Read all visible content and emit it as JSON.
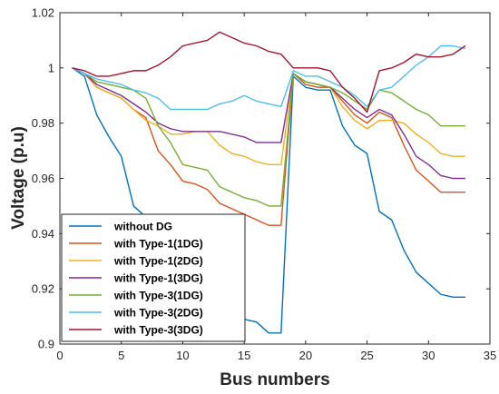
{
  "chart_data": {
    "type": "line",
    "xlabel": "Bus numbers",
    "ylabel": "Voltage (p.u)",
    "xlim": [
      0,
      35
    ],
    "ylim": [
      0.9,
      1.02
    ],
    "xticks": [
      "0",
      "5",
      "10",
      "15",
      "20",
      "25",
      "30",
      "35"
    ],
    "yticks": [
      "0.9",
      "0.92",
      "0.94",
      "0.96",
      "0.98",
      "1",
      "1.02"
    ],
    "grid": false,
    "legend_position": "bottom-left",
    "x": [
      1,
      2,
      3,
      4,
      5,
      6,
      7,
      8,
      9,
      10,
      11,
      12,
      13,
      14,
      15,
      16,
      17,
      18,
      19,
      20,
      21,
      22,
      23,
      24,
      25,
      26,
      27,
      28,
      29,
      30,
      31,
      32,
      33
    ],
    "series": [
      {
        "name": "without DG",
        "color": "#0072BD",
        "values": [
          1.0,
          0.997,
          0.983,
          0.975,
          0.968,
          0.95,
          0.946,
          0.932,
          0.926,
          0.921,
          0.919,
          0.917,
          0.911,
          0.91,
          0.909,
          0.908,
          0.904,
          0.904,
          0.997,
          0.993,
          0.992,
          0.992,
          0.979,
          0.972,
          0.969,
          0.948,
          0.945,
          0.934,
          0.926,
          0.922,
          0.918,
          0.917,
          0.917
        ]
      },
      {
        "name": "with Type-1(1DG)",
        "color": "#D95319",
        "values": [
          1.0,
          0.998,
          0.993,
          0.991,
          0.989,
          0.985,
          0.982,
          0.97,
          0.965,
          0.959,
          0.958,
          0.956,
          0.951,
          0.949,
          0.947,
          0.945,
          0.943,
          0.943,
          0.998,
          0.994,
          0.993,
          0.993,
          0.988,
          0.983,
          0.98,
          0.984,
          0.982,
          0.972,
          0.963,
          0.959,
          0.955,
          0.955,
          0.955
        ]
      },
      {
        "name": "with Type-1(2DG)",
        "color": "#EDB120",
        "values": [
          1.0,
          0.998,
          0.993,
          0.991,
          0.989,
          0.985,
          0.981,
          0.979,
          0.976,
          0.976,
          0.977,
          0.977,
          0.972,
          0.969,
          0.968,
          0.966,
          0.965,
          0.965,
          0.998,
          0.995,
          0.994,
          0.993,
          0.986,
          0.981,
          0.978,
          0.981,
          0.981,
          0.98,
          0.976,
          0.973,
          0.969,
          0.968,
          0.968
        ]
      },
      {
        "name": "with Type-1(3DG)",
        "color": "#7E2F8E",
        "values": [
          1.0,
          0.998,
          0.994,
          0.992,
          0.99,
          0.987,
          0.984,
          0.98,
          0.978,
          0.977,
          0.977,
          0.977,
          0.977,
          0.976,
          0.975,
          0.973,
          0.973,
          0.973,
          0.998,
          0.995,
          0.994,
          0.993,
          0.989,
          0.985,
          0.982,
          0.985,
          0.983,
          0.976,
          0.968,
          0.965,
          0.961,
          0.96,
          0.96
        ]
      },
      {
        "name": "with Type-3(1DG)",
        "color": "#77AC30",
        "values": [
          1.0,
          0.998,
          0.995,
          0.994,
          0.993,
          0.992,
          0.989,
          0.979,
          0.973,
          0.965,
          0.964,
          0.963,
          0.957,
          0.955,
          0.953,
          0.952,
          0.95,
          0.95,
          0.998,
          0.995,
          0.994,
          0.993,
          0.991,
          0.988,
          0.985,
          0.992,
          0.991,
          0.988,
          0.985,
          0.983,
          0.979,
          0.979,
          0.979
        ]
      },
      {
        "name": "with Type-3(2DG)",
        "color": "#4DBEEE",
        "values": [
          1.0,
          0.998,
          0.996,
          0.995,
          0.994,
          0.992,
          0.991,
          0.989,
          0.985,
          0.985,
          0.985,
          0.985,
          0.987,
          0.988,
          0.99,
          0.988,
          0.987,
          0.986,
          0.999,
          0.997,
          0.997,
          0.995,
          0.993,
          0.99,
          0.986,
          0.992,
          0.993,
          0.997,
          1.001,
          1.004,
          1.008,
          1.008,
          1.007
        ]
      },
      {
        "name": "with Type-3(3DG)",
        "color": "#A2142F",
        "values": [
          1.0,
          0.999,
          0.997,
          0.997,
          0.998,
          0.999,
          0.999,
          1.001,
          1.004,
          1.008,
          1.009,
          1.01,
          1.013,
          1.011,
          1.009,
          1.008,
          1.006,
          1.005,
          1.0,
          1.0,
          1.0,
          0.999,
          0.993,
          0.989,
          0.984,
          0.999,
          1.0,
          1.002,
          1.005,
          1.004,
          1.004,
          1.005,
          1.008
        ]
      }
    ]
  }
}
